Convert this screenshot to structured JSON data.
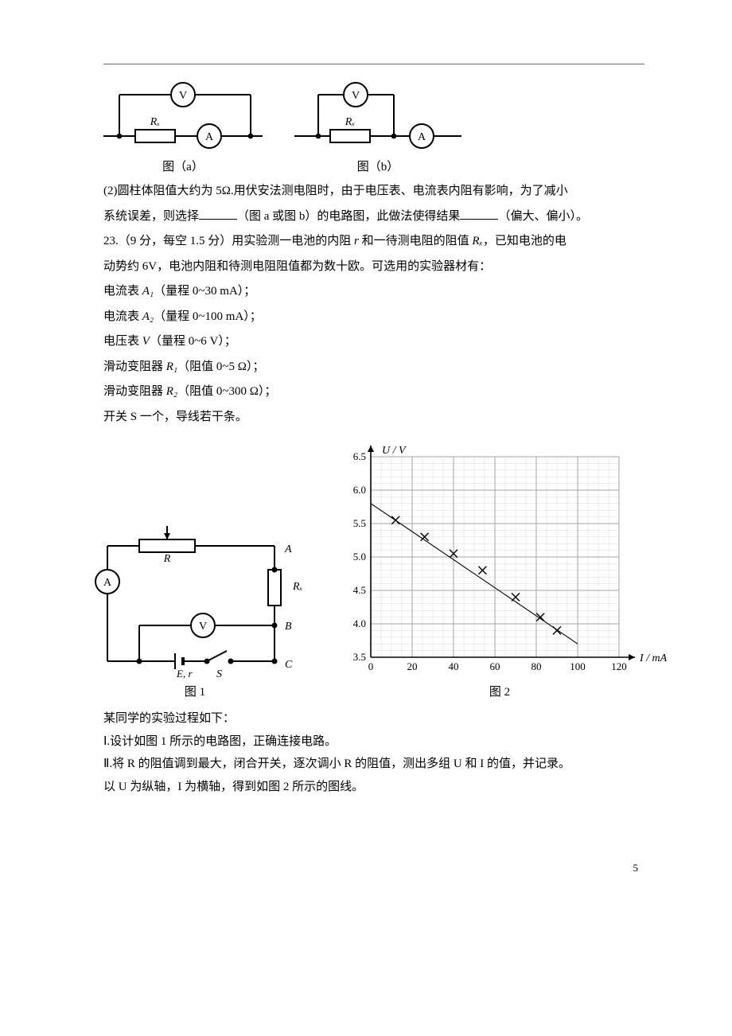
{
  "top_figs": {
    "a": {
      "caption": "图（a）",
      "rx_label": "Rₓ",
      "v_label": "V",
      "a_label": "A"
    },
    "b": {
      "caption": "图（b）",
      "rx_label": "Rₓ",
      "v_label": "V",
      "a_label": "A"
    }
  },
  "q22_tail": {
    "line1_a": "(2)圆柱体阻值大约为 5Ω.用伏安法测电阻时，由于电压表、电流表内阻有影响，为了减小",
    "line2_a": "系统误差，则选择",
    "line2_b": "（图 a 或图 b）的电路图，此做法使得结果",
    "line2_c": "（偏大、偏小）。"
  },
  "q23": {
    "head_a": "23.（9 分，每空 1.5 分）用实验测一电池的内阻 ",
    "head_r": "r",
    "head_b": " 和一待测电阻的阻值 ",
    "head_rx": "Rₓ",
    "head_c": "，已知电池的电",
    "head_d": "动势约 6V，电池内阻和待测电阻阻值都为数十欧。可选用的实验器材有：",
    "item_a1_a": "电流表 ",
    "item_a1_sym": "A₁",
    "item_a1_b": "（量程 0~30 mA）；",
    "item_a2_a": "电流表 ",
    "item_a2_sym": "A₂",
    "item_a2_b": "（量程 0~100 mA）；",
    "item_v_a": "电压表 ",
    "item_v_sym": "V",
    "item_v_b": "（量程 0~6 V）；",
    "item_r1_a": "滑动变阻器 ",
    "item_r1_sym": "R₁",
    "item_r1_b": "（阻值 0~5 Ω）；",
    "item_r2_a": "滑动变阻器 ",
    "item_r2_sym": "R₂",
    "item_r2_b": "（阻值 0~300 Ω）；",
    "item_s": " 开关 S 一个，导线若干条。"
  },
  "fig1": {
    "caption": "图 1",
    "labels": {
      "A_meter": "A",
      "V_meter": "V",
      "R": "R",
      "Rx": "Rₓ",
      "E": "E, r",
      "S": "S",
      "nodeA": "A",
      "nodeB": "B",
      "nodeC": "C"
    }
  },
  "fig2": {
    "caption": "图 2",
    "type": "scatter-line",
    "x_label": "I / mA",
    "y_label": "U / V",
    "xlim": [
      0,
      120
    ],
    "ylim": [
      3.5,
      6.5
    ],
    "x_major_step": 20,
    "y_major_step": 0.5,
    "x_minor_per_major": 4,
    "y_minor_per_major": 5,
    "x_ticks": [
      0,
      20,
      40,
      60,
      80,
      100,
      120
    ],
    "y_ticks": [
      3.5,
      4.0,
      4.5,
      5.0,
      5.5,
      6.0,
      6.5
    ],
    "points": [
      {
        "x": 12,
        "y": 5.55
      },
      {
        "x": 26,
        "y": 5.3
      },
      {
        "x": 40,
        "y": 5.05
      },
      {
        "x": 54,
        "y": 4.8
      },
      {
        "x": 70,
        "y": 4.4
      },
      {
        "x": 82,
        "y": 4.1
      },
      {
        "x": 90,
        "y": 3.9
      }
    ],
    "line": {
      "x1": 0,
      "y1": 5.8,
      "x2": 100,
      "y2": 3.7
    },
    "colors": {
      "axis": "#000000",
      "major_grid": "#a5a5a5",
      "minor_grid": "#d8d8d8",
      "line": "#000000",
      "mark": "#000000"
    },
    "mark_size": 5,
    "line_width": 1.1,
    "axis_font_size": 13,
    "label_font_size": 14
  },
  "body_after": {
    "l1": "某同学的实验过程如下：",
    "l2": "Ⅰ.设计如图 1 所示的电路图，正确连接电路。",
    "l3": "Ⅱ.将 R 的阻值调到最大，闭合开关，逐次调小 R 的阻值，测出多组 U 和 I 的值，并记录。",
    "l4": "以 U 为纵轴，I 为横轴，得到如图 2 所示的图线。"
  },
  "page_number": "5"
}
